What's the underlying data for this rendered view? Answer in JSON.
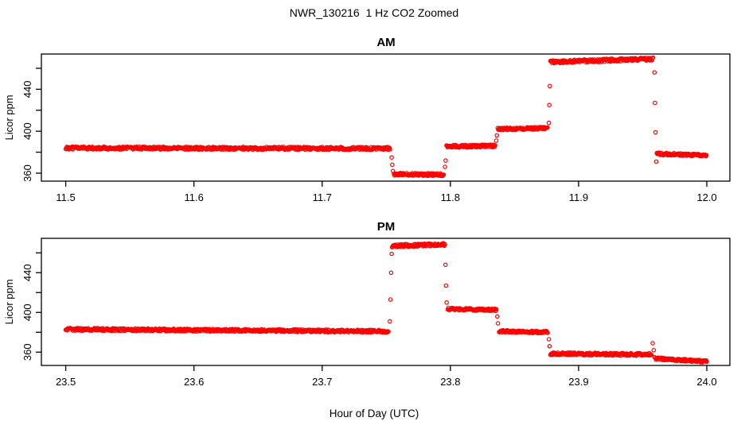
{
  "chart_data": {
    "type": "scatter",
    "title": "NWR_130216  1 Hz CO2 Zoomed",
    "xlabel": "Hour of Day (UTC)",
    "ylabel": "Licor ppm",
    "marker": "open-circle",
    "sample_rate_hz": 1,
    "colors": {
      "points": "#FF0000",
      "axis": "#000000",
      "background": "#FFFFFF",
      "text": "#000000"
    },
    "panels": [
      {
        "title": "AM",
        "xlim": [
          11.481,
          12.018
        ],
        "ylim": [
          352.4,
          473.6
        ],
        "xticks": [
          11.5,
          11.6,
          11.7,
          11.8,
          11.9,
          12.0
        ],
        "xtick_labels": [
          "11.5",
          "11.6",
          "11.7",
          "11.8",
          "11.9",
          "12.0"
        ],
        "yticks": [
          360,
          380,
          400,
          420,
          440,
          460
        ],
        "ytick_labels": [
          "360",
          "",
          "400",
          "",
          "440",
          ""
        ],
        "segments": [
          {
            "start_hour": 11.5,
            "end_hour": 11.753,
            "ppm_start": 384.0,
            "ppm_end": 383.5,
            "noise_ppm": 1.3
          },
          {
            "start_hour": 11.756,
            "end_hour": 11.795,
            "ppm_start": 359.0,
            "ppm_end": 358.5,
            "noise_ppm": 1.2
          },
          {
            "start_hour": 11.797,
            "end_hour": 11.835,
            "ppm_start": 385.5,
            "ppm_end": 386.0,
            "noise_ppm": 1.2
          },
          {
            "start_hour": 11.837,
            "end_hour": 11.876,
            "ppm_start": 402.0,
            "ppm_end": 403.0,
            "noise_ppm": 1.2
          },
          {
            "start_hour": 11.878,
            "end_hour": 11.958,
            "ppm_start": 466.0,
            "ppm_end": 469.0,
            "noise_ppm": 1.4
          },
          {
            "start_hour": 11.961,
            "end_hour": 12.0,
            "ppm_start": 378.5,
            "ppm_end": 377.0,
            "noise_ppm": 1.2
          }
        ],
        "transition_points": [
          {
            "hour": 11.7542,
            "ppm": 375
          },
          {
            "hour": 11.7547,
            "ppm": 368
          },
          {
            "hour": 11.7552,
            "ppm": 362
          },
          {
            "hour": 11.7958,
            "ppm": 366
          },
          {
            "hour": 11.7963,
            "ppm": 372
          },
          {
            "hour": 11.8358,
            "ppm": 391
          },
          {
            "hour": 11.8363,
            "ppm": 396
          },
          {
            "hour": 11.8768,
            "ppm": 408
          },
          {
            "hour": 11.8772,
            "ppm": 425
          },
          {
            "hour": 11.8776,
            "ppm": 443
          },
          {
            "hour": 11.9592,
            "ppm": 456
          },
          {
            "hour": 11.9596,
            "ppm": 427
          },
          {
            "hour": 11.96,
            "ppm": 399
          },
          {
            "hour": 11.9606,
            "ppm": 371
          }
        ]
      },
      {
        "title": "PM",
        "xlim": [
          23.481,
          24.018
        ],
        "ylim": [
          346.6,
          474.6
        ],
        "xticks": [
          23.5,
          23.6,
          23.7,
          23.8,
          23.9,
          24.0
        ],
        "xtick_labels": [
          "23.5",
          "23.6",
          "23.7",
          "23.8",
          "23.9",
          "24.0"
        ],
        "yticks": [
          360,
          380,
          400,
          420,
          440,
          460
        ],
        "ytick_labels": [
          "360",
          "",
          "400",
          "",
          "440",
          ""
        ],
        "segments": [
          {
            "start_hour": 23.5,
            "end_hour": 23.752,
            "ppm_start": 383.0,
            "ppm_end": 381.0,
            "noise_ppm": 1.3
          },
          {
            "start_hour": 23.7545,
            "end_hour": 23.796,
            "ppm_start": 467.0,
            "ppm_end": 468.5,
            "noise_ppm": 1.4
          },
          {
            "start_hour": 23.798,
            "end_hour": 23.836,
            "ppm_start": 403.5,
            "ppm_end": 402.5,
            "noise_ppm": 1.2
          },
          {
            "start_hour": 23.838,
            "end_hour": 23.876,
            "ppm_start": 381.0,
            "ppm_end": 380.0,
            "noise_ppm": 1.2
          },
          {
            "start_hour": 23.878,
            "end_hour": 23.957,
            "ppm_start": 358.5,
            "ppm_end": 357.5,
            "noise_ppm": 1.3
          },
          {
            "start_hour": 23.96,
            "end_hour": 24.0,
            "ppm_start": 353.5,
            "ppm_end": 350.5,
            "noise_ppm": 1.2
          }
        ],
        "transition_points": [
          {
            "hour": 23.7528,
            "ppm": 391
          },
          {
            "hour": 23.7533,
            "ppm": 413
          },
          {
            "hour": 23.7538,
            "ppm": 440
          },
          {
            "hour": 23.7542,
            "ppm": 459
          },
          {
            "hour": 23.7962,
            "ppm": 448
          },
          {
            "hour": 23.7966,
            "ppm": 427
          },
          {
            "hour": 23.7971,
            "ppm": 410
          },
          {
            "hour": 23.8366,
            "ppm": 396
          },
          {
            "hour": 23.8371,
            "ppm": 389
          },
          {
            "hour": 23.8768,
            "ppm": 373
          },
          {
            "hour": 23.8773,
            "ppm": 366
          },
          {
            "hour": 23.9578,
            "ppm": 369
          },
          {
            "hour": 23.9586,
            "ppm": 362
          },
          {
            "hour": 23.9592,
            "ppm": 355
          }
        ]
      }
    ]
  }
}
